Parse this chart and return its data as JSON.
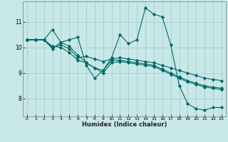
{
  "xlabel": "Humidex (Indice chaleur)",
  "ylabel": "",
  "bg_color": "#c8e8e8",
  "grid_color": "#a8cccc",
  "line_color": "#006868",
  "xlim": [
    -0.5,
    23.5
  ],
  "ylim": [
    7.3,
    11.8
  ],
  "xticks": [
    0,
    1,
    2,
    3,
    4,
    5,
    6,
    7,
    8,
    9,
    10,
    11,
    12,
    13,
    14,
    15,
    16,
    17,
    18,
    19,
    20,
    21,
    22,
    23
  ],
  "yticks": [
    8,
    9,
    10,
    11
  ],
  "lines": [
    {
      "x": [
        0,
        1,
        2,
        3,
        4,
        5,
        6,
        7,
        8,
        9,
        10,
        11,
        12,
        13,
        14,
        15,
        16,
        17,
        18,
        19,
        20,
        21,
        22,
        23
      ],
      "y": [
        10.3,
        10.3,
        10.3,
        10.7,
        10.2,
        10.3,
        10.4,
        9.3,
        8.8,
        9.1,
        9.6,
        10.5,
        10.15,
        10.3,
        11.55,
        11.3,
        11.2,
        10.1,
        8.5,
        7.8,
        7.6,
        7.55,
        7.65,
        7.65
      ]
    },
    {
      "x": [
        0,
        1,
        2,
        3,
        4,
        5,
        6,
        7,
        8,
        9,
        10,
        11,
        12,
        13,
        14,
        15,
        16,
        17,
        18,
        19,
        20,
        21,
        22,
        23
      ],
      "y": [
        10.3,
        10.3,
        10.3,
        10.0,
        10.1,
        9.95,
        9.6,
        9.65,
        9.55,
        9.45,
        9.55,
        9.6,
        9.55,
        9.5,
        9.45,
        9.4,
        9.3,
        9.2,
        9.1,
        9.0,
        8.9,
        8.8,
        8.75,
        8.7
      ]
    },
    {
      "x": [
        0,
        1,
        2,
        3,
        4,
        5,
        6,
        7,
        8,
        9,
        10,
        11,
        12,
        13,
        14,
        15,
        16,
        17,
        18,
        19,
        20,
        21,
        22,
        23
      ],
      "y": [
        10.3,
        10.3,
        10.3,
        9.95,
        10.2,
        10.05,
        9.7,
        9.4,
        9.2,
        9.1,
        9.5,
        9.5,
        9.45,
        9.4,
        9.35,
        9.3,
        9.15,
        9.0,
        8.85,
        8.7,
        8.6,
        8.5,
        8.45,
        8.4
      ]
    },
    {
      "x": [
        0,
        1,
        2,
        3,
        4,
        5,
        6,
        7,
        8,
        9,
        10,
        11,
        12,
        13,
        14,
        15,
        16,
        17,
        18,
        19,
        20,
        21,
        22,
        23
      ],
      "y": [
        10.3,
        10.3,
        10.3,
        10.05,
        10.0,
        9.8,
        9.5,
        9.4,
        9.2,
        9.0,
        9.4,
        9.45,
        9.4,
        9.35,
        9.3,
        9.25,
        9.1,
        8.95,
        8.8,
        8.65,
        8.55,
        8.45,
        8.4,
        8.35
      ]
    }
  ]
}
